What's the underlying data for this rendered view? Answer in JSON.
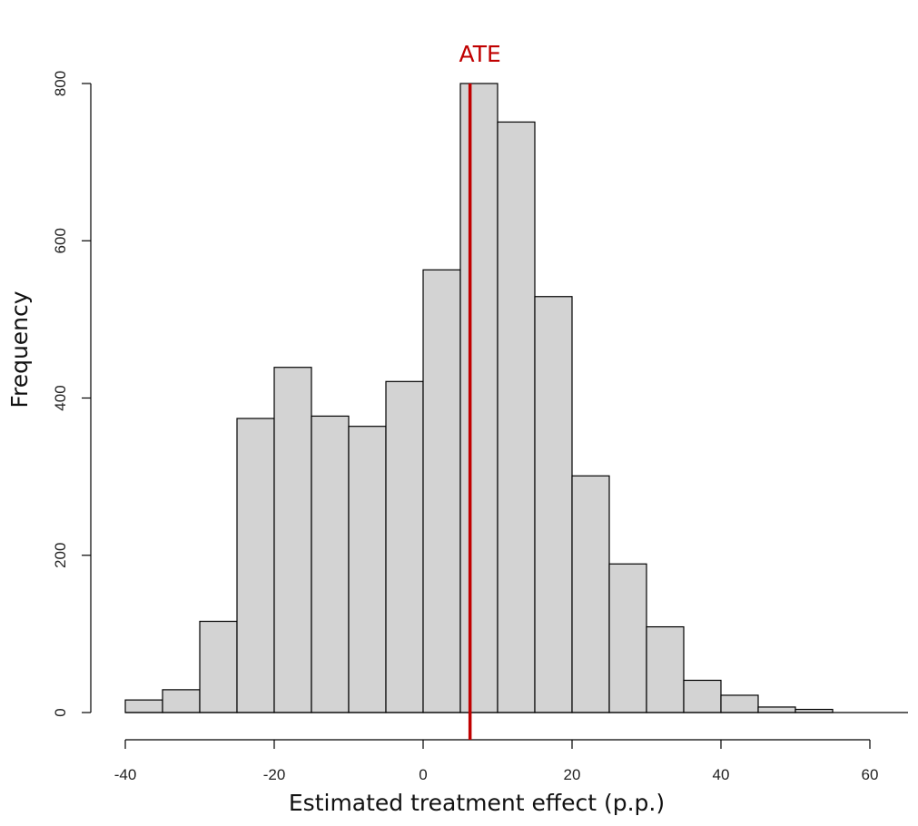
{
  "chart_data": {
    "type": "histogram",
    "title": "",
    "xlabel": "Estimated treatment effect (p.p.)",
    "ylabel": "Frequency",
    "xlim": [
      -40,
      65
    ],
    "ylim": [
      0,
      800
    ],
    "bins": [
      {
        "from": -40,
        "to": -35,
        "count": 16
      },
      {
        "from": -35,
        "to": -30,
        "count": 29
      },
      {
        "from": -30,
        "to": -25,
        "count": 116
      },
      {
        "from": -25,
        "to": -20,
        "count": 374
      },
      {
        "from": -20,
        "to": -15,
        "count": 439
      },
      {
        "from": -15,
        "to": -10,
        "count": 377
      },
      {
        "from": -10,
        "to": -5,
        "count": 364
      },
      {
        "from": -5,
        "to": 0,
        "count": 421
      },
      {
        "from": 0,
        "to": 5,
        "count": 563
      },
      {
        "from": 5,
        "to": 10,
        "count": 800
      },
      {
        "from": 10,
        "to": 15,
        "count": 751
      },
      {
        "from": 15,
        "to": 20,
        "count": 529
      },
      {
        "from": 20,
        "to": 25,
        "count": 301
      },
      {
        "from": 25,
        "to": 30,
        "count": 189
      },
      {
        "from": 30,
        "to": 35,
        "count": 109
      },
      {
        "from": 35,
        "to": 40,
        "count": 41
      },
      {
        "from": 40,
        "to": 45,
        "count": 22
      },
      {
        "from": 45,
        "to": 50,
        "count": 7
      },
      {
        "from": 50,
        "to": 55,
        "count": 4
      }
    ],
    "x_ticks": [
      -40,
      -20,
      0,
      20,
      40,
      60
    ],
    "y_ticks": [
      0,
      200,
      400,
      600,
      800
    ],
    "reference_line": {
      "label": "ATE",
      "value": 6.3,
      "color": "#c00000"
    },
    "bar_fill": "#d3d3d3",
    "bar_stroke": "#000000",
    "grid": false,
    "legend": "none"
  }
}
